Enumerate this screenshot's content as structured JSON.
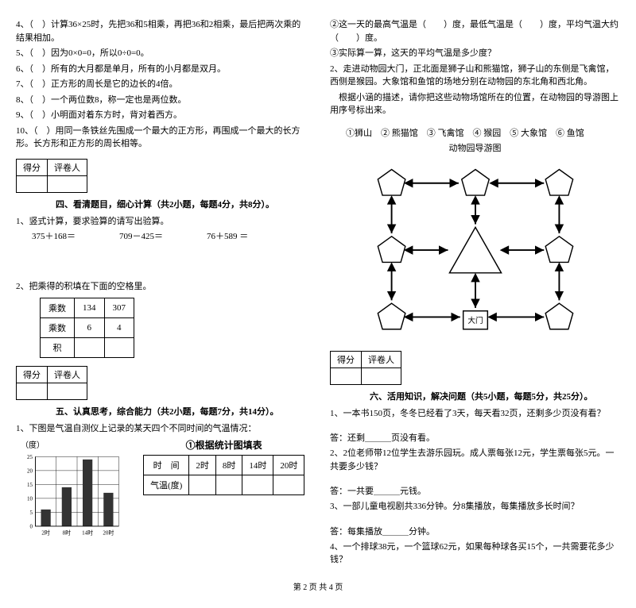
{
  "left": {
    "judgments": [
      "4、（　）计算36×25时，先把36和5相乘，再把36和2相乘，最后把两次乘的结果相加。",
      "5、（　）因为0×0=0，所以0÷0=0。",
      "6、（　）所有的大月都是单月，所有的小月都是双月。",
      "7、（　）正方形的周长是它的边长的4倍。",
      "8、（　）一个两位数8，称一定也是两位数。",
      "9、（　）小明面对着东方时，背对着西方。",
      "10、（　）用同一条铁丝先围成一个最大的正方形，再围成一个最大的长方形。长方形和正方形的周长相等。"
    ],
    "score_labels": {
      "a": "得分",
      "b": "评卷人"
    },
    "section4_title": "四、看清题目，细心计算（共2小题，每题4分，共8分）。",
    "calc_intro": "1、竖式计算，要求验算的请写出验算。",
    "calc_items": "375＋168＝　　　　　709－425＝　　　　　76＋589 ＝",
    "calc2_intro": "2、把乘得的积填在下面的空格里。",
    "mult_table": {
      "headers": [
        "乘数",
        "134",
        "307"
      ],
      "row2": [
        "乘数",
        "6",
        "4"
      ],
      "row3": [
        "积",
        "",
        ""
      ]
    },
    "section5_title": "五、认真思考，综合能力（共2小题，每题7分，共14分）。",
    "q5_1": "1、下图是气温自测仪上记录的某天四个不同时间的气温情况：",
    "chart": {
      "y_label": "（度）",
      "y_ticks": [
        25,
        20,
        15,
        10,
        5,
        0
      ],
      "x_ticks": [
        "2时",
        "8时",
        "14时",
        "20时"
      ],
      "values": [
        6,
        14,
        24,
        12
      ],
      "bar_color": "#333333",
      "grid_color": "#000000",
      "bg_color": "#ffffff"
    },
    "chart_fill_title": "①根据统计图填表",
    "temp_table": {
      "r1": [
        "时　间",
        "2时",
        "8时",
        "14时",
        "20时"
      ],
      "r2": [
        "气温(度)",
        "",
        "",
        "",
        ""
      ]
    }
  },
  "right": {
    "q_lines": [
      "②这一天的最高气温是（　　）度，最低气温是（　　）度，平均气温大约（　　）度。",
      "③实际算一算，这天的平均气温是多少度？"
    ],
    "q2_intro": [
      "2、走进动物园大门，正北面是狮子山和熊猫馆，狮子山的东侧是飞禽馆，西侧是猴园。大象馆和鱼馆的场地分别在动物园的东北角和西北角。",
      "　根据小涵的描述，请你把这些动物场馆所在的位置，在动物园的导游图上用序号标出来。"
    ],
    "legend": "①狮山　② 熊猫馆　③ 飞禽馆　④ 猴园　⑤ 大象馆　⑥ 鱼馆",
    "map_caption": "动物园导游图",
    "gate_label": "大门",
    "score_labels": {
      "a": "得分",
      "b": "评卷人"
    },
    "section6_title": "六、活用知识，解决问题（共5小题，每题5分，共25分）。",
    "p1": "1、一本书150页，冬冬已经看了3天，每天看32页，还剩多少页没有看？",
    "p1_ans": "答：还剩＿＿＿页没有看。",
    "p2": "2、2位老师带12位学生去游乐园玩。成人票每张12元，学生票每张5元。一共要多少钱？",
    "p2_ans": "答：一共要＿＿＿元钱。",
    "p3": "3、一部儿童电视剧共336分钟。分8集播放，每集播放多长时间？",
    "p3_ans": "答：每集播放＿＿＿分钟。",
    "p4": "4、一个排球38元，一个篮球62元，如果每种球各买15个，一共需要花多少钱？"
  },
  "footer": "第 2 页 共 4 页"
}
